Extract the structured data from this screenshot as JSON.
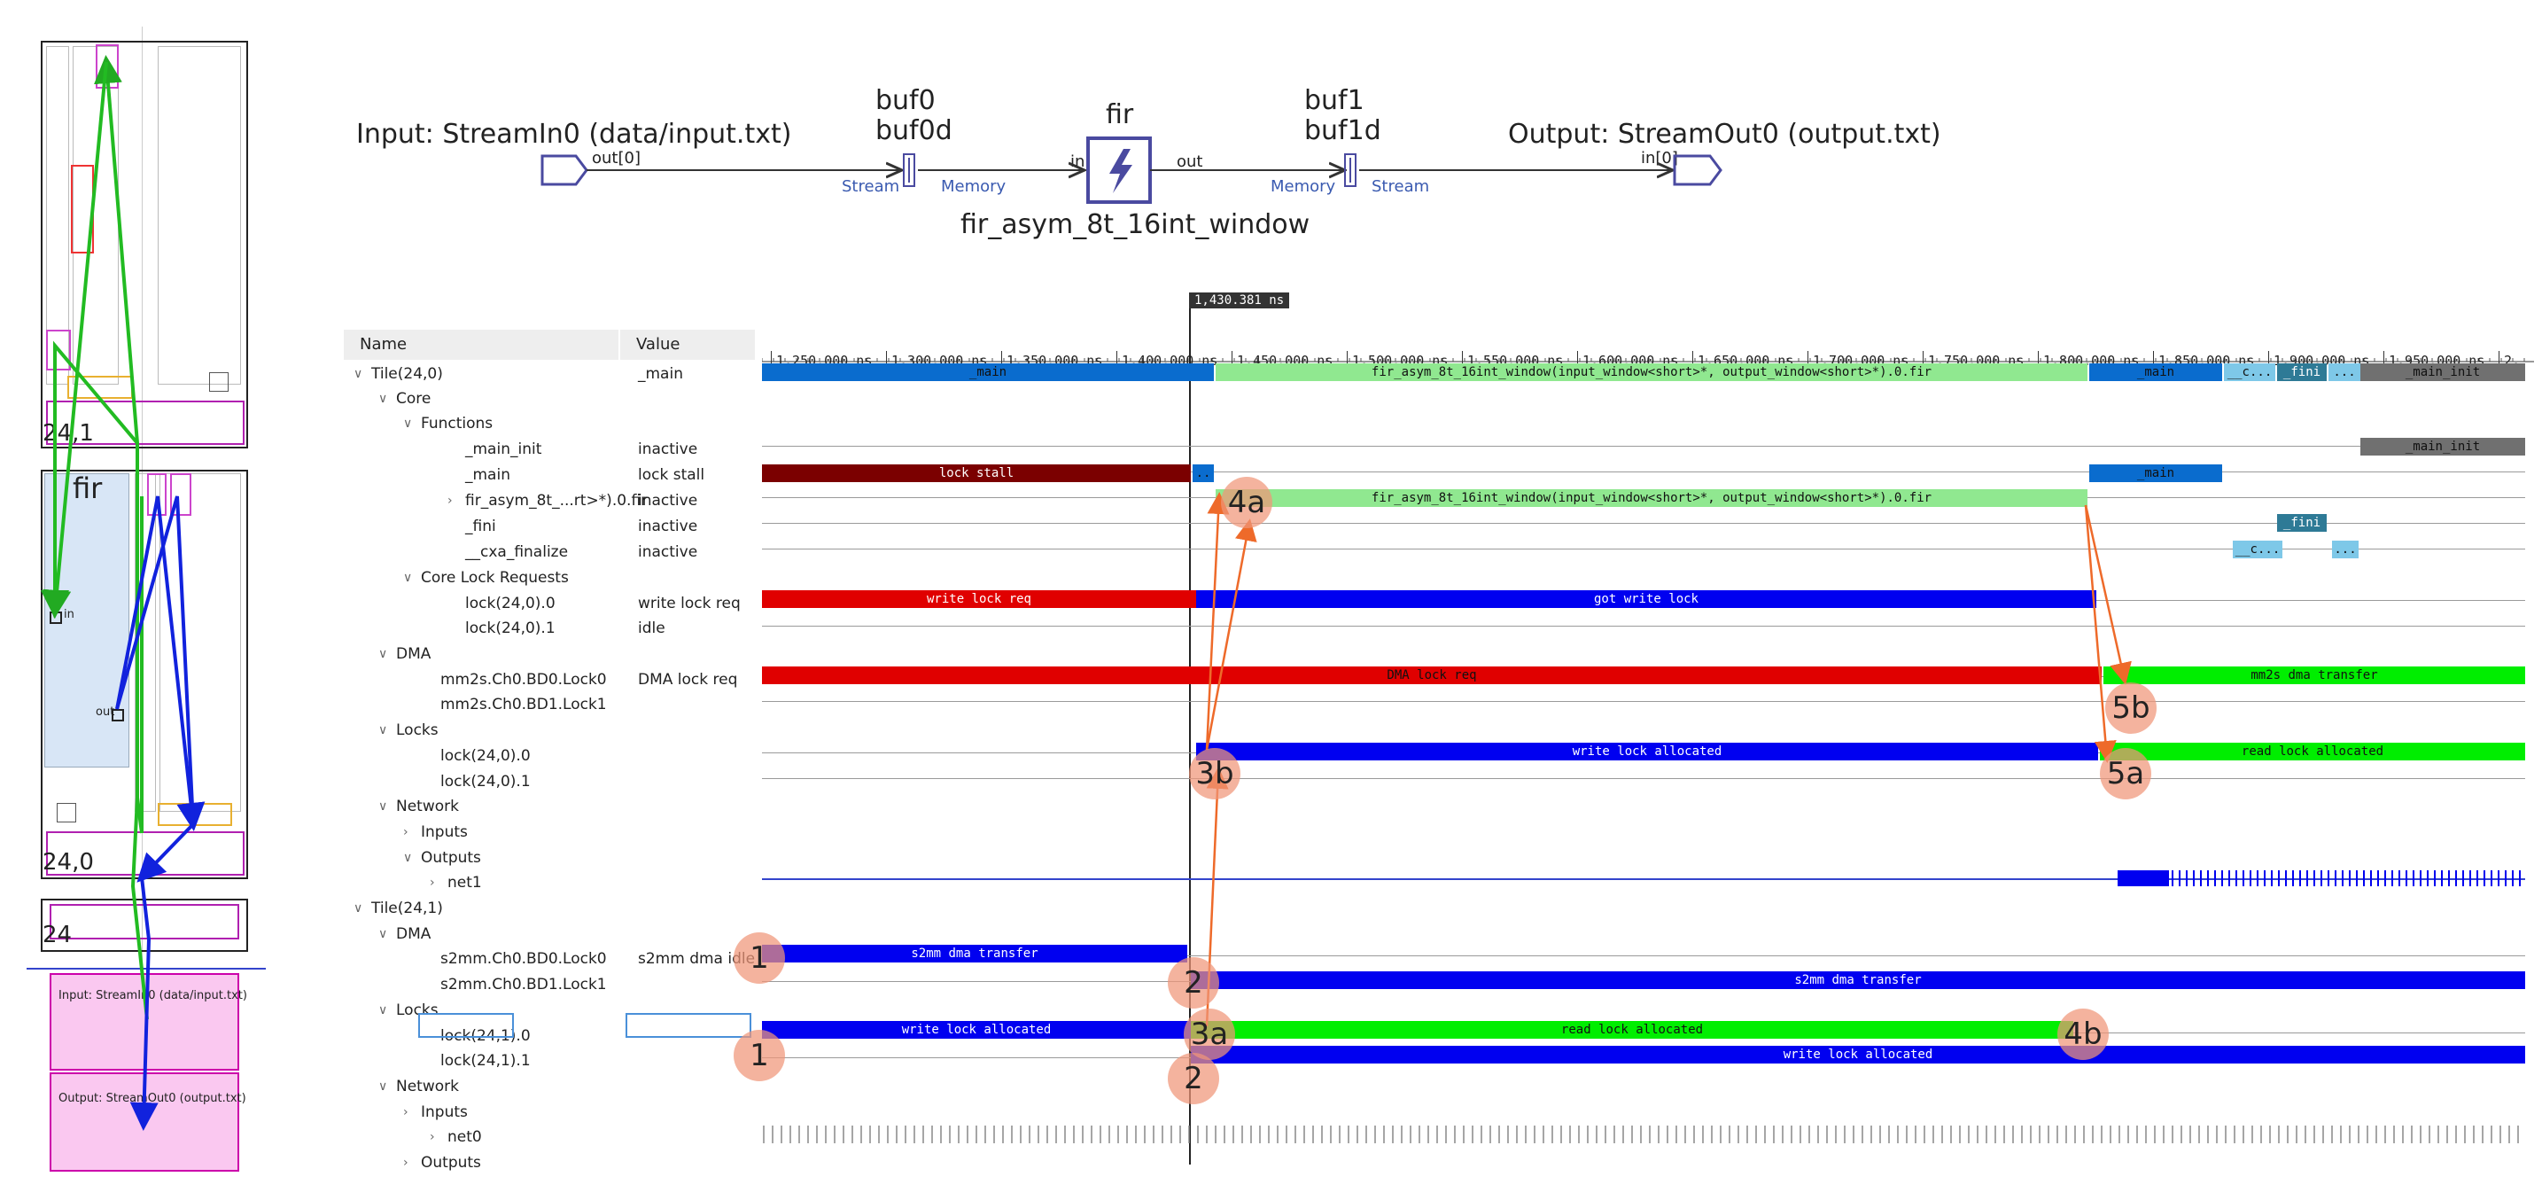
{
  "graph": {
    "input_label": "Input: StreamIn0 (data/input.txt)",
    "output_label": "Output: StreamOut0 (output.txt)",
    "input_port": "out[0]",
    "output_port": "in[0]",
    "buf0_a": "buf0",
    "buf0_b": "buf0d",
    "buf1_a": "buf1",
    "buf1_b": "buf1d",
    "stream_left": "Stream",
    "memory_left": "Memory",
    "memory_right": "Memory",
    "stream_right": "Stream",
    "kernel_name": "fir",
    "kernel_in": "in",
    "kernel_out": "out",
    "kernel_func": "fir_asym_8t_16int_window"
  },
  "array_view": {
    "tile_top": "24,1",
    "tile_mid": "24,0",
    "tile_bottom": "24",
    "fir_label": "fir",
    "in_port": "in",
    "out_port": "out",
    "io_input": "Input: StreamIn0 (data/input.txt)",
    "io_output": "Output: StreamOut0 (output.txt)"
  },
  "trace": {
    "cursor": "1,430.381 ns",
    "col_name": "Name",
    "col_value": "Value",
    "ticks": [
      "1,250.000 ns",
      "1,300.000 ns",
      "1,350.000 ns",
      "1,400.000 ns",
      "1,450.000 ns",
      "1,500.000 ns",
      "1,550.000 ns",
      "1,600.000 ns",
      "1,650.000 ns",
      "1,700.000 ns",
      "1,750.000 ns",
      "1,800.000 ns",
      "1,850.000 ns",
      "1,900.000 ns",
      "1,950.000 ns",
      "2,"
    ],
    "rows": [
      {
        "label": "Tile(24,0)",
        "value": "_main"
      },
      {
        "label": "Core",
        "value": ""
      },
      {
        "label": "Functions",
        "value": ""
      },
      {
        "label": "_main_init",
        "value": "inactive"
      },
      {
        "label": "_main",
        "value": "lock stall"
      },
      {
        "label": "fir_asym_8t_...rt>*).0.fir",
        "value": "inactive"
      },
      {
        "label": "_fini",
        "value": "inactive"
      },
      {
        "label": "__cxa_finalize",
        "value": "inactive"
      },
      {
        "label": "Core Lock Requests",
        "value": ""
      },
      {
        "label": "lock(24,0).0",
        "value": "write lock req"
      },
      {
        "label": "lock(24,0).1",
        "value": "idle"
      },
      {
        "label": "DMA",
        "value": ""
      },
      {
        "label": "mm2s.Ch0.BD0.Lock0",
        "value": "DMA lock req"
      },
      {
        "label": "mm2s.Ch0.BD1.Lock1",
        "value": ""
      },
      {
        "label": "Locks",
        "value": ""
      },
      {
        "label": "lock(24,0).0",
        "value": ""
      },
      {
        "label": "lock(24,0).1",
        "value": ""
      },
      {
        "label": "Network",
        "value": ""
      },
      {
        "label": "Inputs",
        "value": ""
      },
      {
        "label": "Outputs",
        "value": ""
      },
      {
        "label": "net1",
        "value": ""
      },
      {
        "label": "Tile(24,1)",
        "value": ""
      },
      {
        "label": "DMA",
        "value": ""
      },
      {
        "label": "s2mm.Ch0.BD0.Lock0",
        "value": "s2mm dma idle"
      },
      {
        "label": "s2mm.Ch0.BD1.Lock1",
        "value": ""
      },
      {
        "label": "Locks",
        "value": ""
      },
      {
        "label": "lock(24,1).0",
        "value": ""
      },
      {
        "label": "lock(24,1).1",
        "value": ""
      },
      {
        "label": "Network",
        "value": ""
      },
      {
        "label": "Inputs",
        "value": ""
      },
      {
        "label": "net0",
        "value": ""
      },
      {
        "label": "Outputs",
        "value": ""
      }
    ],
    "bars": {
      "main": "_main",
      "fir_long": "fir_asym_8t_16int_window(input_window<short>*, output_window<short>*).0.fir",
      "main2": "_main",
      "cdots": "__c...",
      "fini": "_fini",
      "dots": "...",
      "main_init": "_main_init",
      "lock_stall": "lock stall",
      "small_dots": "..",
      "main_row_main": "_main",
      "fir_row": "fir_asym_8t_16int_window(input_window<short>*, output_window<short>*).0.fir",
      "fini_row": "_fini",
      "cxa_row": "__c...",
      "cxa_dots": "...",
      "write_lock_req": "write lock req",
      "got_write_lock": "got write lock",
      "dma_lock_req": "DMA lock req",
      "mm2s_transfer": "mm2s dma transfer",
      "write_lock_alloc_a": "write lock allocated",
      "read_lock_alloc_a": "read lock allocated",
      "s2mm_transfer_a": "s2mm dma transfer",
      "s2mm_transfer_b": "s2mm dma transfer",
      "write_lock_alloc_b": "write lock allocated",
      "read_lock_alloc_b": "read lock allocated",
      "write_lock_alloc_c": "write lock allocated"
    },
    "markers": [
      "1",
      "2",
      "3a",
      "3b",
      "4a",
      "4b",
      "5a",
      "5b",
      "1",
      "2"
    ]
  },
  "colors": {
    "blue": "#0a6cce",
    "green": "#90e890",
    "dark_red": "#7b0000",
    "red": "#e00000",
    "deep_blue": "#0000f0",
    "lime": "#00ee00",
    "teal": "#2e7a96",
    "light_blue": "#7ec8e8",
    "gray": "#707070"
  }
}
